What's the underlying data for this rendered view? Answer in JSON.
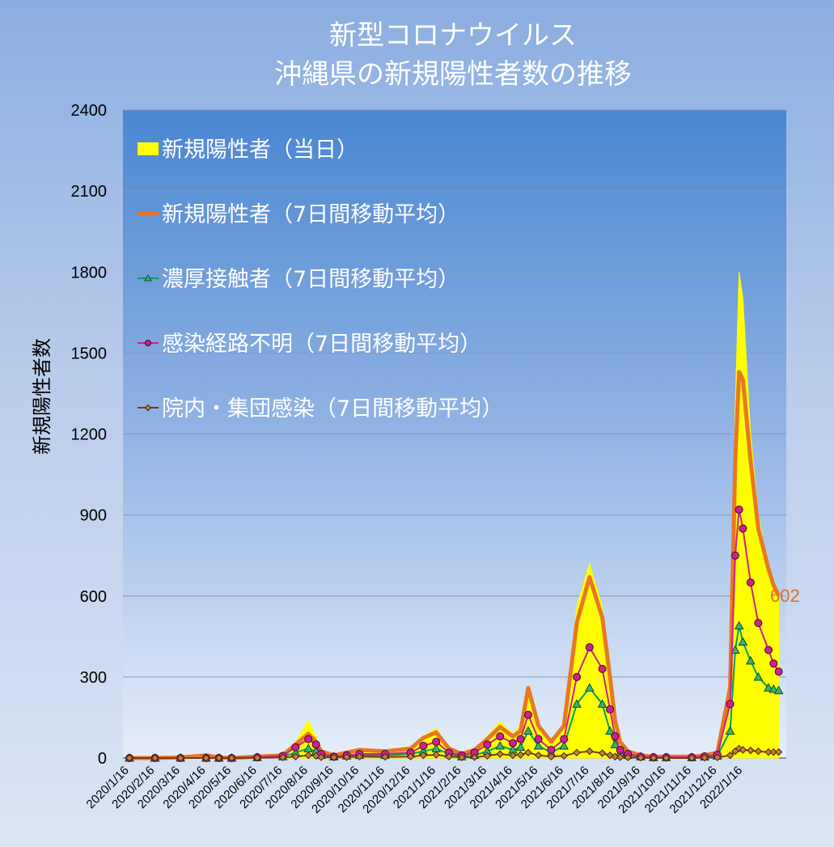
{
  "chart_data": {
    "type": "line",
    "title_line1": "新型コロナウイルス",
    "title_line2": "沖縄県の新規陽性者数の推移",
    "ylabel": "新規陽性者数",
    "ylim": [
      0,
      2400
    ],
    "yticks": [
      "0",
      "300",
      "600",
      "900",
      "1200",
      "1500",
      "1800",
      "2100",
      "2400"
    ],
    "xticks": [
      "2020/1/16",
      "2020/2/16",
      "2020/3/16",
      "2020/4/16",
      "2020/5/16",
      "2020/6/16",
      "2020/7/16",
      "2020/8/16",
      "2020/9/16",
      "2020/10/16",
      "2020/11/16",
      "2020/12/16",
      "2021/1/16",
      "2021/2/16",
      "2021/3/16",
      "2021/4/16",
      "2021/5/16",
      "2021/6/16",
      "2021/7/16",
      "2021/8/16",
      "2021/9/16",
      "2021/10/16",
      "2021/11/16",
      "2021/12/16",
      "2022/1/16"
    ],
    "grid": true,
    "legend_position": "top-left",
    "x": [
      0,
      1,
      2,
      3,
      3.5,
      4,
      5,
      6,
      6.5,
      7,
      7.3,
      7.5,
      8,
      8.5,
      9,
      10,
      11,
      11.5,
      12,
      12.5,
      13,
      13.5,
      14,
      14.5,
      15,
      15.3,
      15.6,
      16,
      16.5,
      17,
      17.5,
      18,
      18.5,
      18.8,
      19,
      19.2,
      19.5,
      20,
      20.5,
      21,
      22,
      22.5,
      23,
      23.5,
      23.7,
      23.85,
      24,
      24.3,
      24.6,
      25,
      25.2,
      25.4
    ],
    "series": [
      {
        "name": "新規陽性者（当日）",
        "color": "#ffff00",
        "values": [
          0,
          0,
          2,
          10,
          3,
          0,
          5,
          10,
          60,
          140,
          80,
          30,
          10,
          20,
          30,
          25,
          35,
          80,
          110,
          40,
          15,
          30,
          80,
          135,
          90,
          120,
          260,
          130,
          60,
          130,
          560,
          720,
          560,
          300,
          150,
          60,
          25,
          10,
          5,
          5,
          5,
          10,
          20,
          300,
          1300,
          1800,
          1700,
          1200,
          900,
          700,
          650,
          600
        ]
      },
      {
        "name": "新規陽性者（7日間移動平均）",
        "color": "#e87722",
        "values": [
          0,
          0,
          2,
          10,
          2,
          0,
          5,
          10,
          50,
          90,
          60,
          25,
          10,
          20,
          30,
          25,
          35,
          75,
          95,
          35,
          15,
          30,
          70,
          115,
          80,
          100,
          260,
          120,
          60,
          120,
          500,
          670,
          520,
          300,
          140,
          60,
          25,
          10,
          5,
          5,
          5,
          10,
          20,
          260,
          1100,
          1430,
          1400,
          1100,
          850,
          700,
          640,
          602
        ]
      },
      {
        "name": "濃厚接触者（7日間移動平均）",
        "color": "#00a060",
        "values": [
          0,
          0,
          0,
          0,
          0,
          0,
          2,
          5,
          20,
          35,
          25,
          10,
          5,
          8,
          10,
          10,
          15,
          25,
          35,
          15,
          5,
          10,
          25,
          45,
          30,
          40,
          100,
          45,
          20,
          45,
          200,
          260,
          200,
          100,
          50,
          20,
          10,
          5,
          2,
          2,
          2,
          4,
          8,
          100,
          400,
          490,
          430,
          360,
          300,
          260,
          255,
          250
        ]
      },
      {
        "name": "感染経路不明（7日間移動平均）",
        "color": "#d0208f",
        "values": [
          0,
          0,
          0,
          0,
          0,
          0,
          3,
          8,
          40,
          70,
          50,
          15,
          5,
          10,
          15,
          15,
          20,
          45,
          60,
          20,
          10,
          20,
          50,
          80,
          55,
          70,
          160,
          70,
          30,
          70,
          300,
          410,
          330,
          180,
          80,
          30,
          15,
          5,
          3,
          3,
          3,
          6,
          12,
          200,
          750,
          920,
          850,
          650,
          500,
          400,
          350,
          320
        ]
      },
      {
        "name": "院内・集団感染（7日間移動平均）",
        "color": "#7a3b14",
        "values": [
          0,
          0,
          0,
          0,
          0,
          0,
          1,
          2,
          5,
          10,
          8,
          3,
          2,
          3,
          5,
          4,
          5,
          10,
          12,
          5,
          2,
          3,
          8,
          15,
          10,
          12,
          20,
          10,
          5,
          8,
          20,
          25,
          18,
          10,
          5,
          3,
          2,
          1,
          0,
          0,
          0,
          1,
          2,
          10,
          25,
          35,
          30,
          28,
          25,
          22,
          22,
          22
        ]
      }
    ],
    "last_value_label": "602"
  }
}
